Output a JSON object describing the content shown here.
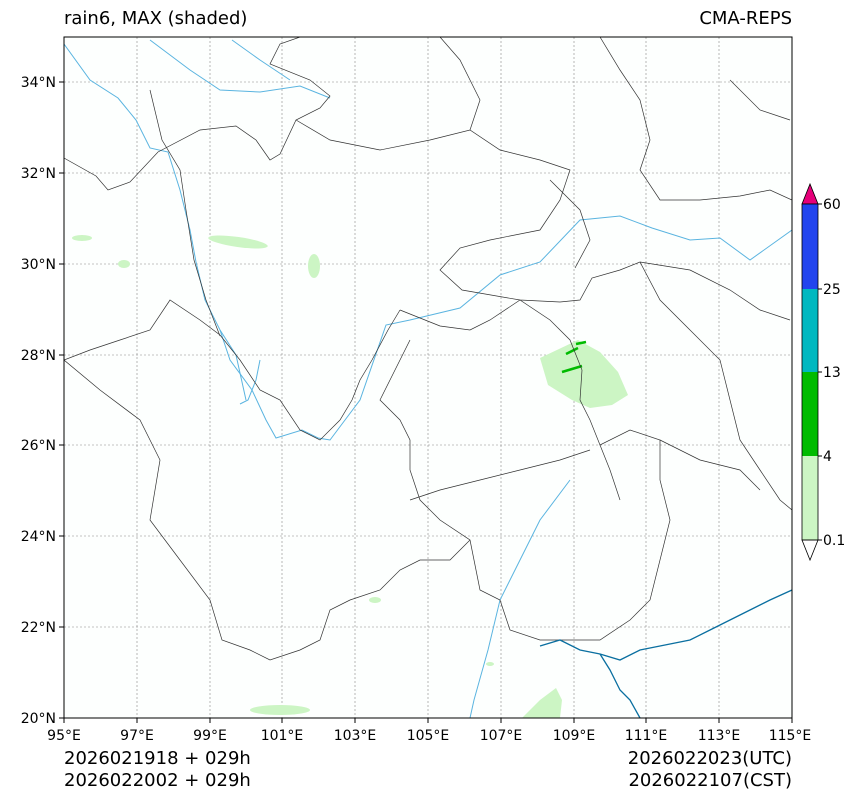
{
  "header": {
    "title_left": "rain6, MAX (shaded)",
    "title_right": "CMA-REPS"
  },
  "footer": {
    "init_utc": "2026021918  +  029h",
    "init_cst": "2026022002  +  029h",
    "valid_utc": "2026022023(UTC)",
    "valid_cst": "2026022107(CST)"
  },
  "map": {
    "lon_range": [
      95,
      115
    ],
    "lat_range": [
      20,
      35
    ],
    "lon_ticks": [
      "95°E",
      "97°E",
      "99°E",
      "101°E",
      "103°E",
      "105°E",
      "107°E",
      "109°E",
      "111°E",
      "113°E",
      "115°E"
    ],
    "lat_ticks": [
      "20°N",
      "22°N",
      "24°N",
      "26°N",
      "28°N",
      "30°N",
      "32°N",
      "34°N"
    ]
  },
  "legend": {
    "labels": [
      "0.1",
      "4",
      "13",
      "25",
      "60"
    ],
    "colors": {
      "below": "#ffffff",
      "band1": "#ccf5c4",
      "band2": "#00bb00",
      "band3": "#00b8c0",
      "band4": "#2244ee",
      "above": "#e6007a"
    }
  },
  "colors": {
    "river": "#5ab4e0",
    "border": "#333333",
    "grid": "#888888",
    "coast": "#0a6fa0"
  }
}
